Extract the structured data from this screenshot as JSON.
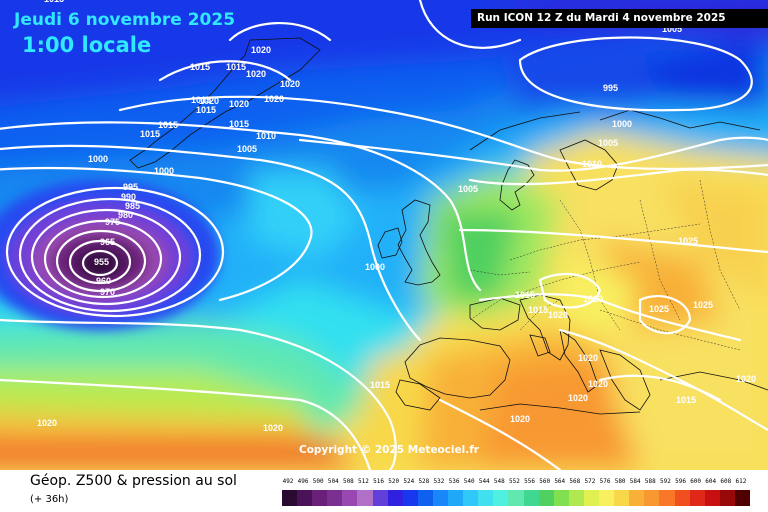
{
  "header": {
    "date": "Jeudi 6 novembre 2025",
    "time": "1:00 locale",
    "run": "Run ICON 12 Z du Mardi 4 novembre 2025"
  },
  "copyright": "Copyright © 2025 Meteociel.fr",
  "footer": {
    "title": "Géop. Z500 & pression au sol",
    "subtitle": "(+ 36h)"
  },
  "legend": {
    "ticks": [
      "492",
      "496",
      "500",
      "504",
      "508",
      "512",
      "516",
      "520",
      "524",
      "528",
      "532",
      "536",
      "540",
      "544",
      "548",
      "552",
      "556",
      "560",
      "564",
      "568",
      "572",
      "576",
      "580",
      "584",
      "588",
      "592",
      "596",
      "600",
      "604",
      "608",
      "612"
    ],
    "colors": [
      "#2a0a30",
      "#4a1258",
      "#6a2078",
      "#7a3090",
      "#9848b0",
      "#b070c8",
      "#6040d8",
      "#3020e0",
      "#1838f0",
      "#1060f0",
      "#1888f8",
      "#20a8f8",
      "#30c8f8",
      "#40e0f0",
      "#50f0e0",
      "#60e8b0",
      "#40d890",
      "#50d060",
      "#80e050",
      "#b0e850",
      "#e0f050",
      "#f8f060",
      "#f8d848",
      "#f8b038",
      "#f89830",
      "#f87828",
      "#f05020",
      "#e02818",
      "#c81010",
      "#980808",
      "#500000"
    ]
  },
  "isobar_labels": [
    "1015",
    "1020",
    "1015",
    "1015",
    "1020",
    "1020",
    "1015",
    "1020",
    "1020",
    "1020",
    "1015",
    "1015",
    "1015",
    "1015",
    "1010",
    "1000",
    "1005",
    "1000",
    "995",
    "990",
    "985",
    "980",
    "975",
    "965",
    "955",
    "960",
    "970",
    "1005",
    "1000",
    "995",
    "1000",
    "1005",
    "1010",
    "1025",
    "1015",
    "1020",
    "1015",
    "1020",
    "1025",
    "1025",
    "1015",
    "1020",
    "1020",
    "1020",
    "1020",
    "1020",
    "1015",
    "1020",
    "1020",
    "1005"
  ],
  "colors": {
    "date_text": "#30e8ff",
    "contour": "#ffffff",
    "low_center": "#6a1a5a"
  }
}
